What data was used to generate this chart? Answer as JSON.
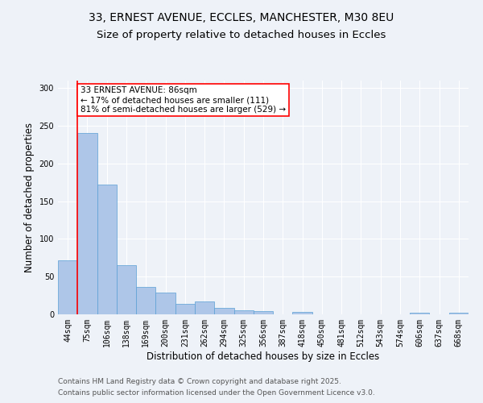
{
  "title_line1": "33, ERNEST AVENUE, ECCLES, MANCHESTER, M30 8EU",
  "title_line2": "Size of property relative to detached houses in Eccles",
  "xlabel": "Distribution of detached houses by size in Eccles",
  "ylabel": "Number of detached properties",
  "categories": [
    "44sqm",
    "75sqm",
    "106sqm",
    "138sqm",
    "169sqm",
    "200sqm",
    "231sqm",
    "262sqm",
    "294sqm",
    "325sqm",
    "356sqm",
    "387sqm",
    "418sqm",
    "450sqm",
    "481sqm",
    "512sqm",
    "543sqm",
    "574sqm",
    "606sqm",
    "637sqm",
    "668sqm"
  ],
  "values": [
    72,
    240,
    172,
    65,
    36,
    29,
    14,
    17,
    9,
    5,
    4,
    0,
    3,
    0,
    0,
    0,
    0,
    0,
    2,
    0,
    2
  ],
  "bar_color": "#aec6e8",
  "bar_edge_color": "#5a9fd4",
  "background_color": "#eef2f8",
  "red_line_index": 1.0,
  "annotation_text": "33 ERNEST AVENUE: 86sqm\n← 17% of detached houses are smaller (111)\n81% of semi-detached houses are larger (529) →",
  "annotation_box_color": "white",
  "annotation_box_edge": "red",
  "ylim": [
    0,
    310
  ],
  "yticks": [
    0,
    50,
    100,
    150,
    200,
    250,
    300
  ],
  "footer_line1": "Contains HM Land Registry data © Crown copyright and database right 2025.",
  "footer_line2": "Contains public sector information licensed under the Open Government Licence v3.0.",
  "title_fontsize": 10,
  "subtitle_fontsize": 9.5,
  "axis_label_fontsize": 8.5,
  "tick_fontsize": 7,
  "annotation_fontsize": 7.5,
  "footer_fontsize": 6.5
}
